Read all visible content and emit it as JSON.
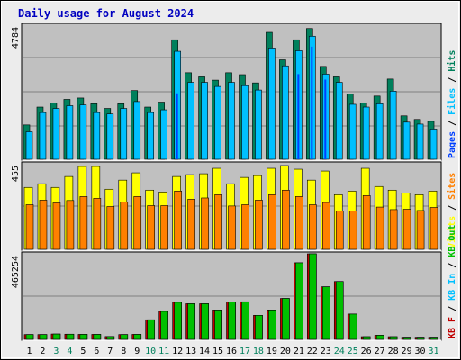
{
  "chart_data": {
    "type": "bar",
    "title": "Daily usage for August 2024",
    "categories": [
      "1",
      "2",
      "3",
      "4",
      "5",
      "6",
      "7",
      "8",
      "9",
      "10",
      "11",
      "12",
      "13",
      "14",
      "15",
      "16",
      "17",
      "18",
      "19",
      "20",
      "21",
      "22",
      "23",
      "24",
      "25",
      "26",
      "27",
      "28",
      "29",
      "30",
      "31"
    ],
    "weekend_days": [
      "3",
      "4",
      "10",
      "11",
      "17",
      "18",
      "24",
      "25",
      "31"
    ],
    "panels": [
      {
        "id": "hits",
        "axis_max_label": "4784",
        "ymax": 4784,
        "legend": [
          "Pages",
          "Files",
          "Hits"
        ],
        "series": [
          {
            "name": "Hits",
            "values": [
              1250,
              1900,
              2050,
              2180,
              2230,
              2020,
              1850,
              2020,
              2500,
              1900,
              2080,
              4350,
              3150,
              3000,
              2880,
              3150,
              3080,
              2780,
              4620,
              3620,
              4350,
              4760,
              3380,
              3000,
              2380,
              2050,
              2300,
              2920,
              1580,
              1450,
              1380
            ]
          },
          {
            "name": "Files",
            "values": [
              1000,
              1700,
              1850,
              1950,
              1980,
              1700,
              1650,
              1850,
              2100,
              1700,
              1800,
              3930,
              2800,
              2800,
              2650,
              2800,
              2680,
              2520,
              4050,
              3400,
              3950,
              4480,
              3100,
              2800,
              2000,
              1900,
              2020,
              2480,
              1350,
              1280,
              1100
            ]
          },
          {
            "name": "Pages",
            "values": [
              0,
              0,
              0,
              0,
              0,
              0,
              0,
              0,
              0,
              0,
              0,
              2400,
              0,
              0,
              0,
              0,
              0,
              0,
              0,
              0,
              3100,
              4100,
              2900,
              0,
              0,
              0,
              0,
              0,
              0,
              0,
              0
            ]
          }
        ]
      },
      {
        "id": "visits",
        "axis_max_label": "455",
        "ymax": 455,
        "legend": [
          "Visits",
          "Sites"
        ],
        "series": [
          {
            "name": "Visits",
            "values": [
              340,
              360,
              340,
              400,
              455,
              455,
              330,
              380,
              420,
              325,
              315,
              400,
              410,
              415,
              445,
              360,
              395,
              405,
              445,
              460,
              440,
              380,
              430,
              300,
              320,
              445,
              345,
              325,
              310,
              300,
              320
            ]
          },
          {
            "name": "Sites",
            "values": [
              245,
              270,
              255,
              268,
              290,
              280,
              235,
              260,
              290,
              240,
              240,
              320,
              275,
              282,
              300,
              238,
              245,
              270,
              300,
              325,
              290,
              245,
              257,
              210,
              210,
              295,
              232,
              218,
              220,
              213,
              230
            ]
          }
        ]
      },
      {
        "id": "kbytes",
        "axis_max_label": "465254",
        "ymax": 465254,
        "legend": [
          "KB F",
          "KB In",
          "KB Out"
        ],
        "series": [
          {
            "name": "KB F",
            "values": [
              27000,
              27000,
              30000,
              29000,
              28000,
              28000,
              16000,
              27000,
              28000,
              110000,
              157000,
              208000,
              200000,
              200000,
              165000,
              210000,
              211000,
              135000,
              165000,
              230000,
              430000,
              515000,
              295000,
              325000,
              142000,
              15000,
              23000,
              15000,
              12000,
              12000,
              12000
            ]
          }
        ]
      }
    ],
    "colors": {
      "hits": "#00805c",
      "files": "#00c0ff",
      "pages": "#0040ff",
      "visits": "#ffff00",
      "sites": "#ff8000",
      "kbytes": "#00c000",
      "kbytes_f": "#c00000",
      "title": "#0000c0",
      "weekday_label": "#000000",
      "weekend_label": "#00805c"
    }
  }
}
